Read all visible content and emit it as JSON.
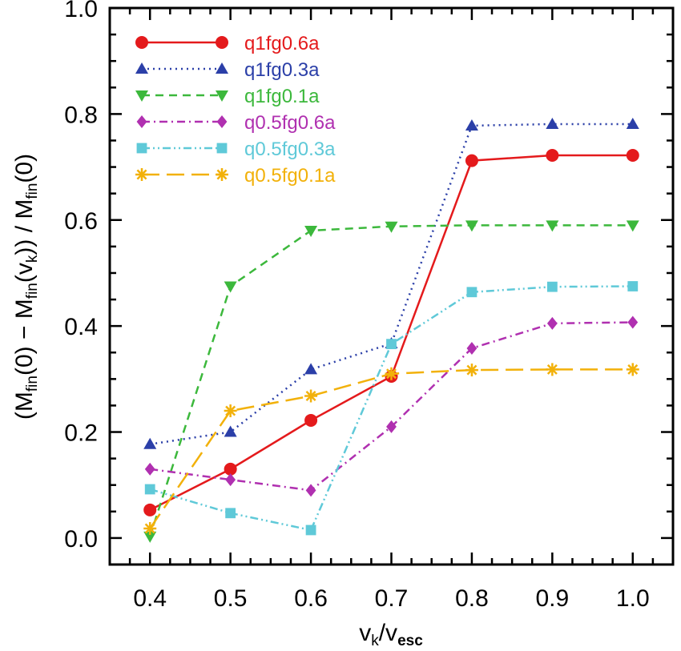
{
  "chart_data": {
    "type": "line",
    "x_label_main": "v",
    "x_label_sub1": "k",
    "x_label_slash": "/v",
    "x_label_sub2": "esc",
    "y_label_parts": [
      "(M",
      "fin",
      "(0) − M",
      "fin",
      "(v",
      "k",
      ")) / M",
      "fin",
      "(0)"
    ],
    "xlim": [
      0.35,
      1.05
    ],
    "ylim": [
      -0.05,
      1.0
    ],
    "x_ticks": [
      0.4,
      0.5,
      0.6,
      0.7,
      0.8,
      0.9,
      1.0
    ],
    "x_tick_labels": [
      "0.4",
      "0.5",
      "0.6",
      "0.7",
      "0.8",
      "0.9",
      "1.0"
    ],
    "y_ticks": [
      0.0,
      0.2,
      0.4,
      0.6,
      0.8,
      1.0
    ],
    "y_tick_labels": [
      "0.0",
      "0.2",
      "0.4",
      "0.6",
      "0.8",
      "1.0"
    ],
    "grid": false,
    "legend_position": "top-left",
    "x": [
      0.4,
      0.5,
      0.6,
      0.7,
      0.8,
      0.9,
      1.0
    ],
    "series": [
      {
        "name": "q1fg0.6a",
        "color": "#e41a1c",
        "dash": "solid",
        "marker": "circle",
        "values": [
          0.053,
          0.13,
          0.222,
          0.305,
          0.712,
          0.722,
          0.722
        ]
      },
      {
        "name": "q1fg0.3a",
        "color": "#2b3fa8",
        "dash": "dotted",
        "marker": "triangle-up",
        "values": [
          0.177,
          0.2,
          0.318,
          0.367,
          0.778,
          0.781,
          0.781
        ]
      },
      {
        "name": "q1fg0.1a",
        "color": "#3cb83c",
        "dash": "dashed",
        "marker": "triangle-down",
        "values": [
          0.003,
          0.475,
          0.58,
          0.588,
          0.59,
          0.59,
          0.59
        ]
      },
      {
        "name": "q0.5fg0.6a",
        "color": "#b030b0",
        "dash": "dashdot",
        "marker": "diamond",
        "values": [
          0.13,
          0.11,
          0.09,
          0.21,
          0.358,
          0.405,
          0.407
        ]
      },
      {
        "name": "q0.5fg0.3a",
        "color": "#5fc9d8",
        "dash": "dashdotdot",
        "marker": "square",
        "values": [
          0.092,
          0.047,
          0.015,
          0.366,
          0.464,
          0.474,
          0.475
        ]
      },
      {
        "name": "q0.5fg0.1a",
        "color": "#f2b10a",
        "dash": "longdash",
        "marker": "asterisk",
        "values": [
          0.018,
          0.24,
          0.268,
          0.31,
          0.317,
          0.318,
          0.318
        ]
      }
    ]
  }
}
